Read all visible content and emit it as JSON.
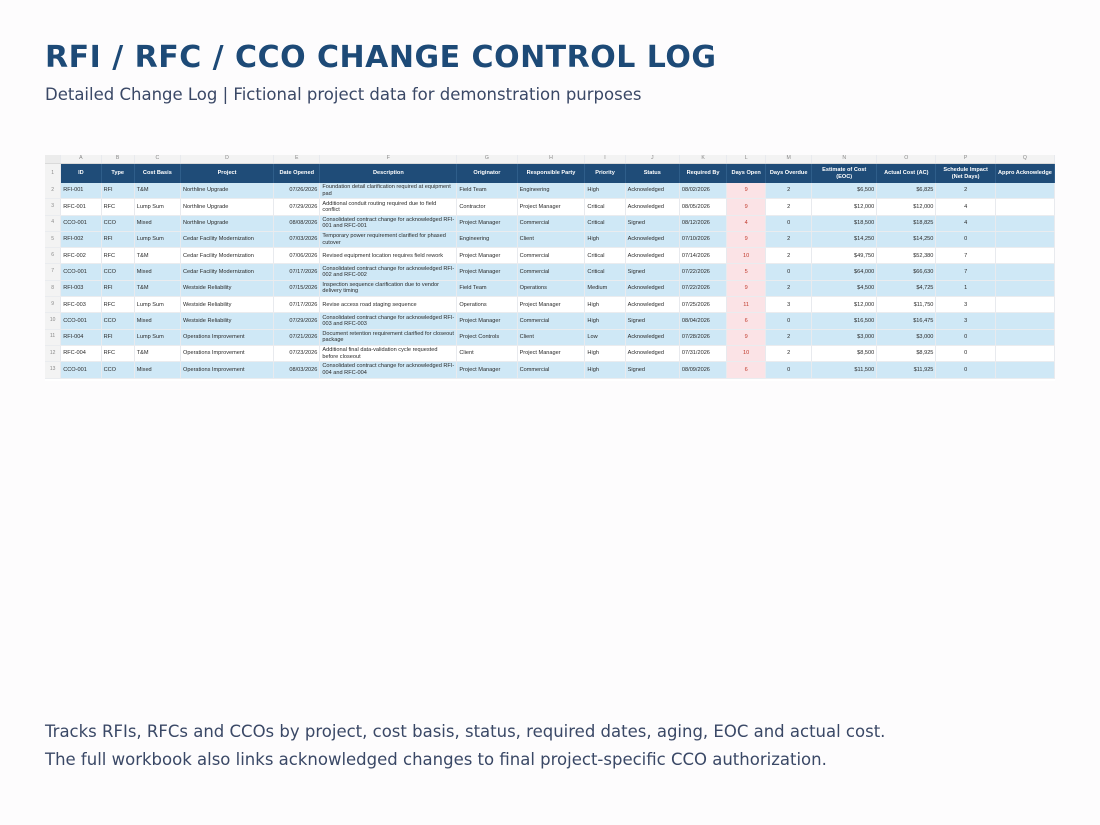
{
  "page": {
    "title": "RFI / RFC / CCO CHANGE CONTROL LOG",
    "subtitle": "Detailed Change Log | Fictional project data for demonstration purposes",
    "footer_line1": "Tracks RFIs, RFCs and CCOs by project, cost basis, status, required dates, aging, EOC and actual cost.",
    "footer_line2": "The full workbook also links acknowledged changes to final project-specific CCO authorization."
  },
  "sheet": {
    "column_letters": [
      "A",
      "B",
      "C",
      "D",
      "E",
      "F",
      "G",
      "H",
      "I",
      "J",
      "K",
      "L",
      "M",
      "N",
      "O",
      "P",
      "Q"
    ],
    "headers": [
      "ID",
      "Type",
      "Cost Basis",
      "Project",
      "Date Opened",
      "Description",
      "Originator",
      "Responsible Party",
      "Priority",
      "Status",
      "Required By",
      "Days Open",
      "Days Overdue",
      "Estimate of Cost (EOC)",
      "Actual Cost (AC)",
      "Schedule Impact (Net Days)",
      "Appro Acknowledge"
    ],
    "rows": [
      {
        "n": "2",
        "id": "RFI-001",
        "type": "RFI",
        "basis": "T&M",
        "project": "Northline Upgrade",
        "opened": "07/26/2026",
        "desc": "Foundation detail clarification required at equipment pad",
        "orig": "Field Team",
        "resp": "Engineering",
        "priority": "High",
        "status": "Acknowledged",
        "req": "08/02/2026",
        "open": "9",
        "overdue": "2",
        "eoc": "$6,500",
        "ac": "$6,825",
        "sched": "2",
        "appr": ""
      },
      {
        "n": "3",
        "id": "RFC-001",
        "type": "RFC",
        "basis": "Lump Sum",
        "project": "Northline Upgrade",
        "opened": "07/29/2026",
        "desc": "Additional conduit routing required due to field conflict",
        "orig": "Contractor",
        "resp": "Project Manager",
        "priority": "Critical",
        "status": "Acknowledged",
        "req": "08/05/2026",
        "open": "9",
        "overdue": "2",
        "eoc": "$12,000",
        "ac": "$12,000",
        "sched": "4",
        "appr": ""
      },
      {
        "n": "4",
        "id": "CCO-001",
        "type": "CCO",
        "basis": "Mixed",
        "project": "Northline Upgrade",
        "opened": "08/08/2026",
        "desc": "Consolidated contract change for acknowledged RFI-001 and RFC-001",
        "orig": "Project Manager",
        "resp": "Commercial",
        "priority": "Critical",
        "status": "Signed",
        "req": "08/12/2026",
        "open": "4",
        "overdue": "0",
        "eoc": "$18,500",
        "ac": "$18,825",
        "sched": "4",
        "appr": ""
      },
      {
        "n": "5",
        "id": "RFI-002",
        "type": "RFI",
        "basis": "Lump Sum",
        "project": "Cedar Facility Modernization",
        "opened": "07/03/2026",
        "desc": "Temporary power requirement clarified for phased cutover",
        "orig": "Engineering",
        "resp": "Client",
        "priority": "High",
        "status": "Acknowledged",
        "req": "07/10/2026",
        "open": "9",
        "overdue": "2",
        "eoc": "$14,250",
        "ac": "$14,250",
        "sched": "0",
        "appr": ""
      },
      {
        "n": "6",
        "id": "RFC-002",
        "type": "RFC",
        "basis": "T&M",
        "project": "Cedar Facility Modernization",
        "opened": "07/06/2026",
        "desc": "Revised equipment location requires field rework",
        "orig": "Project Manager",
        "resp": "Commercial",
        "priority": "Critical",
        "status": "Acknowledged",
        "req": "07/14/2026",
        "open": "10",
        "overdue": "2",
        "eoc": "$49,750",
        "ac": "$52,380",
        "sched": "7",
        "appr": ""
      },
      {
        "n": "7",
        "id": "CCO-001",
        "type": "CCO",
        "basis": "Mixed",
        "project": "Cedar Facility Modernization",
        "opened": "07/17/2026",
        "desc": "Consolidated contract change for acknowledged RFI-002 and RFC-002",
        "orig": "Project Manager",
        "resp": "Commercial",
        "priority": "Critical",
        "status": "Signed",
        "req": "07/22/2026",
        "open": "5",
        "overdue": "0",
        "eoc": "$64,000",
        "ac": "$66,630",
        "sched": "7",
        "appr": ""
      },
      {
        "n": "8",
        "id": "RFI-003",
        "type": "RFI",
        "basis": "T&M",
        "project": "Westside Reliability",
        "opened": "07/15/2026",
        "desc": "Inspection sequence clarification due to vendor delivery timing",
        "orig": "Field Team",
        "resp": "Operations",
        "priority": "Medium",
        "status": "Acknowledged",
        "req": "07/22/2026",
        "open": "9",
        "overdue": "2",
        "eoc": "$4,500",
        "ac": "$4,725",
        "sched": "1",
        "appr": ""
      },
      {
        "n": "9",
        "id": "RFC-003",
        "type": "RFC",
        "basis": "Lump Sum",
        "project": "Westside Reliability",
        "opened": "07/17/2026",
        "desc": "Revise access road staging sequence",
        "orig": "Operations",
        "resp": "Project Manager",
        "priority": "High",
        "status": "Acknowledged",
        "req": "07/25/2026",
        "open": "11",
        "overdue": "3",
        "eoc": "$12,000",
        "ac": "$11,750",
        "sched": "3",
        "appr": ""
      },
      {
        "n": "10",
        "id": "CCO-001",
        "type": "CCO",
        "basis": "Mixed",
        "project": "Westside Reliability",
        "opened": "07/29/2026",
        "desc": "Consolidated contract change for acknowledged RFI-003 and RFC-003",
        "orig": "Project Manager",
        "resp": "Commercial",
        "priority": "High",
        "status": "Signed",
        "req": "08/04/2026",
        "open": "6",
        "overdue": "0",
        "eoc": "$16,500",
        "ac": "$16,475",
        "sched": "3",
        "appr": ""
      },
      {
        "n": "11",
        "id": "RFI-004",
        "type": "RFI",
        "basis": "Lump Sum",
        "project": "Operations Improvement",
        "opened": "07/21/2026",
        "desc": "Document retention requirement clarified for closeout package",
        "orig": "Project Controls",
        "resp": "Client",
        "priority": "Low",
        "status": "Acknowledged",
        "req": "07/28/2026",
        "open": "9",
        "overdue": "2",
        "eoc": "$3,000",
        "ac": "$3,000",
        "sched": "0",
        "appr": ""
      },
      {
        "n": "12",
        "id": "RFC-004",
        "type": "RFC",
        "basis": "T&M",
        "project": "Operations Improvement",
        "opened": "07/23/2026",
        "desc": "Additional final data-validation cycle requested before closeout",
        "orig": "Client",
        "resp": "Project Manager",
        "priority": "High",
        "status": "Acknowledged",
        "req": "07/31/2026",
        "open": "10",
        "overdue": "2",
        "eoc": "$8,500",
        "ac": "$8,925",
        "sched": "0",
        "appr": ""
      },
      {
        "n": "13",
        "id": "CCO-001",
        "type": "CCO",
        "basis": "Mixed",
        "project": "Operations Improvement",
        "opened": "08/03/2026",
        "desc": "Consolidated contract change for acknowledged RFI-004 and RFC-004",
        "orig": "Project Manager",
        "resp": "Commercial",
        "priority": "High",
        "status": "Signed",
        "req": "08/09/2026",
        "open": "6",
        "overdue": "0",
        "eoc": "$11,500",
        "ac": "$11,925",
        "sched": "0",
        "appr": ""
      }
    ]
  },
  "colors": {
    "title": "#1d4a77",
    "header_fill": "#1f4c78",
    "row_blue": "#cfe8f6",
    "days_open_fill": "#fbe3e6",
    "days_open_text": "#c0392b"
  }
}
